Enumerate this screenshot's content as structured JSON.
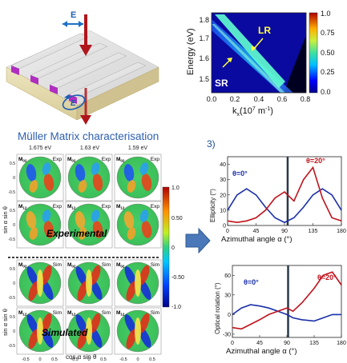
{
  "schematic": {
    "polarization_in_label": "E",
    "polarization_out_label": "E"
  },
  "dispersion": {
    "ylabel": "Energy (eV)",
    "xlabel_main": "k",
    "xlabel_sub": "x",
    "xlabel_unit": "(10",
    "xlabel_exp": "7",
    "xlabel_tail": " m",
    "xlabel_exp2": "-1",
    "xlabel_close": ")",
    "y_ticks": [
      "1.8",
      "1.7",
      "1.6",
      "1.5"
    ],
    "x_ticks": [
      "0.0",
      "0.2",
      "0.4",
      "0.6",
      "0.8"
    ],
    "colorbar_ticks": [
      "1.0",
      "0.75",
      "0.50",
      "0.25",
      "0.0"
    ],
    "label_lr": "LR",
    "label_sr": "SR"
  },
  "mueller": {
    "title": "Müller Matrix characterisation",
    "energies": [
      "1.675 eV",
      "1.63 eV",
      "1.59 eV"
    ],
    "element_labels": [
      "M",
      "M"
    ],
    "element_subs": [
      "02",
      "12"
    ],
    "exp_tag": "Exp",
    "sim_tag": "Sim",
    "experimental_label": "Experimental",
    "simulated_label": "Simulated",
    "ylabel": "sin α sin θ",
    "xlabel": "cos α sin θ",
    "axis_ticks": [
      "-0.5",
      "0",
      "0.5"
    ],
    "colorbar_ticks": [
      "1.0",
      "0.50",
      "0",
      "-0.50",
      "-1.0"
    ]
  },
  "section_label": "3)",
  "chart_data": [
    {
      "type": "line",
      "ylabel": "Ellipticity (°)",
      "xlabel": "Azimuthal angle α (°)",
      "x_ticks": [
        "0",
        "45",
        "90",
        "135",
        "180"
      ],
      "y_ticks": [
        "40",
        "30",
        "20",
        "10",
        "0"
      ],
      "xlim": [
        0,
        180
      ],
      "ylim": [
        0,
        45
      ],
      "x": [
        0,
        15,
        30,
        45,
        60,
        75,
        90,
        105,
        120,
        135,
        150,
        165,
        180
      ],
      "series": [
        {
          "name": "θ=0°",
          "color": "#1a2fa8",
          "values": [
            10,
            20,
            24,
            20,
            12,
            5,
            2,
            5,
            12,
            20,
            24,
            20,
            10
          ]
        },
        {
          "name": "θ=20°",
          "color": "#c0121b",
          "values": [
            3,
            2,
            3,
            5,
            10,
            18,
            22,
            16,
            30,
            38,
            18,
            5,
            3
          ]
        }
      ],
      "vline_x": 95
    },
    {
      "type": "line",
      "ylabel": "Optical rotation (°)",
      "xlabel": "Azimuthal angle α (°)",
      "x_ticks": [
        "0",
        "45",
        "90",
        "135",
        "180"
      ],
      "y_ticks": [
        "60",
        "30",
        "0",
        "-30"
      ],
      "xlim": [
        0,
        180
      ],
      "ylim": [
        -35,
        75
      ],
      "x": [
        0,
        15,
        30,
        45,
        60,
        75,
        90,
        100,
        115,
        135,
        150,
        165,
        180
      ],
      "series": [
        {
          "name": "θ=0°",
          "color": "#1a2fa8",
          "values": [
            0,
            10,
            15,
            13,
            10,
            5,
            0,
            -5,
            -8,
            -10,
            -5,
            0,
            0
          ]
        },
        {
          "name": "θ=20°",
          "color": "#c0121b",
          "values": [
            -20,
            -22,
            -15,
            -8,
            0,
            5,
            10,
            5,
            18,
            40,
            60,
            65,
            45
          ]
        }
      ],
      "vline_x": 92
    }
  ]
}
